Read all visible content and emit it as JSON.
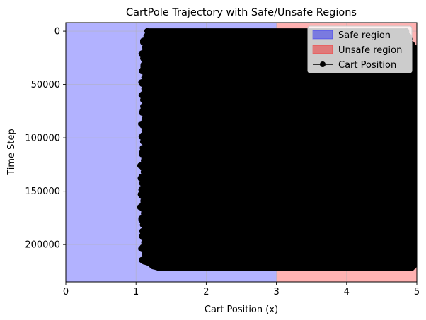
{
  "chart_data": {
    "type": "scatter",
    "title": "CartPole Trajectory with Safe/Unsafe Regions",
    "xlabel": "Cart Position (x)",
    "ylabel": "Time Step",
    "xlim": [
      0,
      5
    ],
    "ylim": [
      235000,
      -8000
    ],
    "y_inverted": true,
    "xticks": [
      0,
      1,
      2,
      3,
      4,
      5
    ],
    "yticks": [
      0,
      50000,
      100000,
      150000,
      200000
    ],
    "grid": true,
    "legend_position": "top-right",
    "regions": [
      {
        "name": "Safe region",
        "x_range": [
          0,
          3
        ],
        "color": "#0000ff",
        "alpha": 0.3
      },
      {
        "name": "Unsafe region",
        "x_range": [
          3,
          5
        ],
        "color": "#ff0000",
        "alpha": 0.3
      }
    ],
    "series": [
      {
        "name": "Cart Position",
        "color": "#000000",
        "marker": "o",
        "line": true,
        "envelope": [
          {
            "t": 0,
            "x_min": 1.16,
            "x_max": 4.85
          },
          {
            "t": 20000,
            "x_min": 1.12,
            "x_max": 5
          },
          {
            "t": 50000,
            "x_min": 1.12,
            "x_max": 5
          },
          {
            "t": 100000,
            "x_min": 1.12,
            "x_max": 5
          },
          {
            "t": 150000,
            "x_min": 1.1,
            "x_max": 5
          },
          {
            "t": 200000,
            "x_min": 1.12,
            "x_max": 5
          },
          {
            "t": 215000,
            "x_min": 1.12,
            "x_max": 5
          },
          {
            "t": 223000,
            "x_min": 1.32,
            "x_max": 4.95
          }
        ]
      }
    ]
  }
}
